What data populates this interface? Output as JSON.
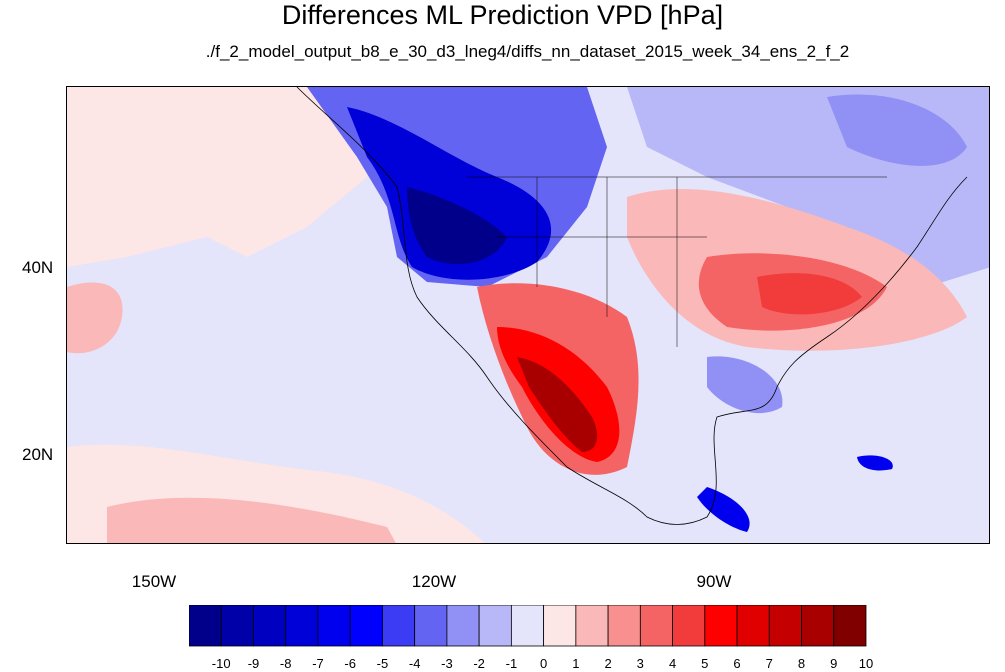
{
  "title": "Differences ML Prediction VPD [hPa]",
  "subtitle": "./f_2_model_output_b8_e_30_d3_lneg4/diffs_nn_dataset_2015_week_34_ens_2_f_2",
  "map": {
    "lon_range": [
      -160,
      -61
    ],
    "lat_range": [
      10,
      59
    ],
    "lon_labels": [
      "150W",
      "120W",
      "90W"
    ],
    "lat_labels": [
      "40N",
      "20N"
    ]
  },
  "colorbar": {
    "labels": [
      "-10",
      "-9",
      "-8",
      "-7",
      "-6",
      "-5",
      "-4",
      "-3",
      "-2",
      "-1",
      "0",
      "1",
      "2",
      "3",
      "4",
      "5",
      "6",
      "7",
      "8",
      "9",
      "10"
    ],
    "colors": [
      "#00008b",
      "#0000a8",
      "#0000c0",
      "#0000d8",
      "#0000ee",
      "#0000ff",
      "#3c3cf5",
      "#6464f2",
      "#9090f5",
      "#b8b8f8",
      "#e4e4fa",
      "#fde6e6",
      "#fbb8b8",
      "#f89090",
      "#f46464",
      "#f23c3c",
      "#ff0000",
      "#e00000",
      "#c40000",
      "#a80000",
      "#800000"
    ]
  }
}
